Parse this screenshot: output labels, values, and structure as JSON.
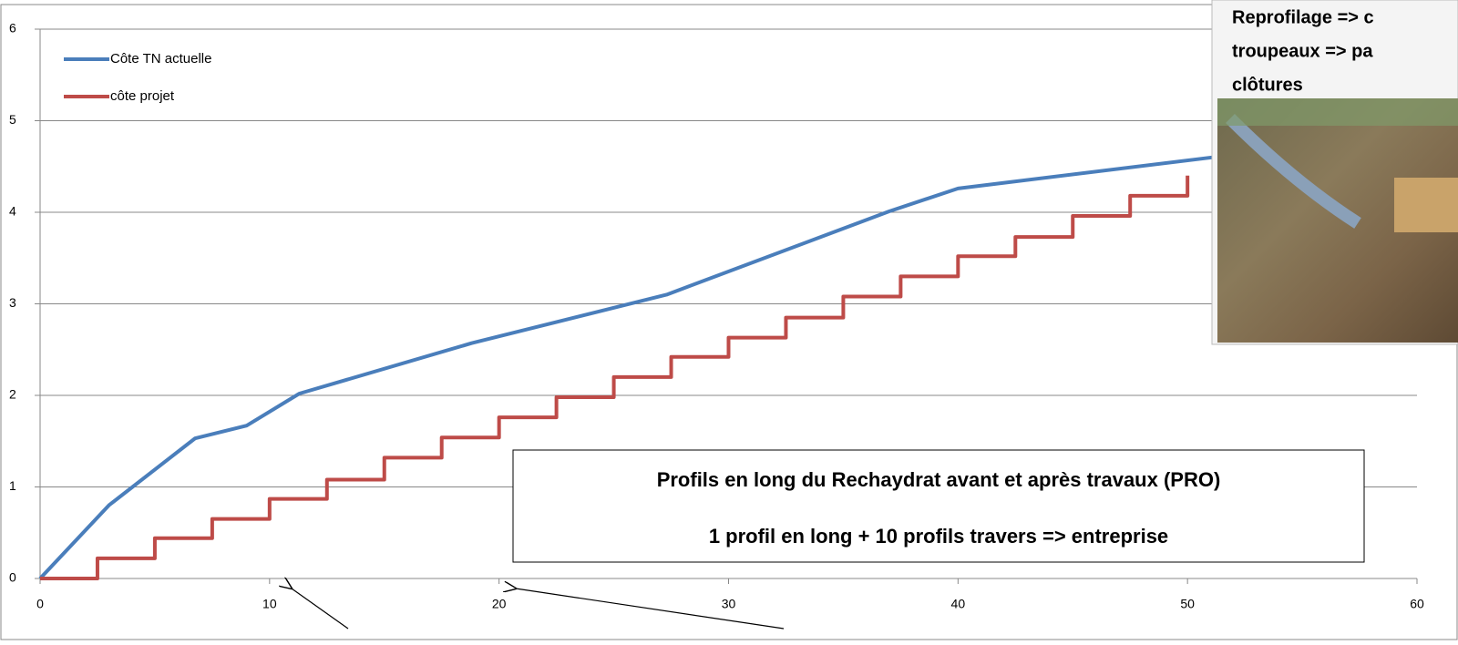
{
  "chart_data": {
    "type": "line",
    "xlim": [
      0,
      60
    ],
    "xticks": [
      0,
      10,
      20,
      30,
      40,
      50,
      60
    ],
    "ylim": [
      0,
      6
    ],
    "yticks": [
      0,
      1,
      2,
      3,
      4,
      5,
      6
    ],
    "grid": true,
    "legend": "top-left",
    "series": [
      {
        "name": "Côte TN actuelle",
        "color": "#4a7ebb",
        "step": false,
        "x": [
          0,
          3,
          6.75,
          9,
          11.3,
          18.8,
          27.3,
          37,
          40,
          51.1
        ],
        "values": [
          0,
          0.8,
          1.53,
          1.67,
          2.02,
          2.57,
          3.1,
          4.01,
          4.26,
          4.6
        ]
      },
      {
        "name": "côte projet",
        "color": "#be4b48",
        "step": true,
        "x": [
          0,
          2.5,
          5,
          7.5,
          10,
          12.5,
          15,
          17.5,
          20,
          22.5,
          25,
          27.5,
          30,
          32.5,
          35,
          37.5,
          40,
          42.5,
          45,
          47.5,
          50
        ],
        "values": [
          0,
          0.22,
          0.44,
          0.65,
          0.87,
          1.08,
          1.32,
          1.54,
          1.76,
          1.98,
          2.2,
          2.42,
          2.63,
          2.85,
          3.08,
          3.3,
          3.52,
          3.73,
          3.96,
          4.18,
          4.4
        ]
      }
    ],
    "annotations": [
      "Profils en long du Rechaydrat avant et après travaux (PRO)",
      "1 profil en long + 10 profils travers  => entreprise"
    ],
    "photo_caption": [
      "Reprofilage => c",
      "troupeaux => pa",
      "clôtures"
    ]
  }
}
